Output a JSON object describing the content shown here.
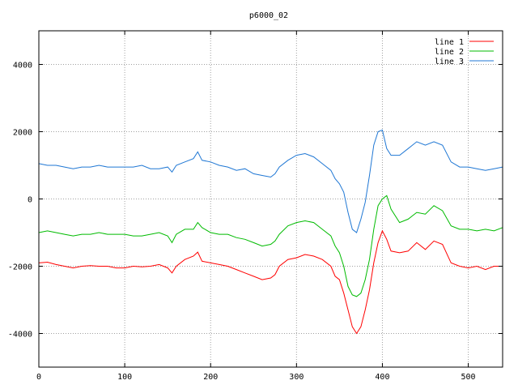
{
  "chart_data": {
    "type": "line",
    "title": "p6000_02",
    "xlim": [
      0,
      540
    ],
    "ylim": [
      -5000,
      5000
    ],
    "xticks": [
      0,
      100,
      200,
      300,
      400,
      500
    ],
    "yticks": [
      -4000,
      -2000,
      0,
      2000,
      4000
    ],
    "xtick_labels": [
      "0",
      "100",
      "200",
      "300",
      "400",
      "500"
    ],
    "ytick_labels": [
      "-4000",
      "-2000",
      "0",
      "2000",
      "4000"
    ],
    "grid": true,
    "legend_position": "top-right",
    "series": [
      {
        "name": "line 1",
        "color": "#ff0000",
        "x": [
          0,
          10,
          20,
          30,
          40,
          50,
          60,
          70,
          80,
          90,
          100,
          110,
          120,
          130,
          140,
          150,
          155,
          160,
          170,
          180,
          185,
          190,
          200,
          210,
          220,
          230,
          240,
          250,
          260,
          270,
          275,
          280,
          290,
          300,
          310,
          320,
          330,
          340,
          345,
          350,
          355,
          360,
          365,
          370,
          375,
          380,
          385,
          390,
          395,
          400,
          405,
          410,
          420,
          430,
          440,
          450,
          460,
          470,
          480,
          490,
          500,
          510,
          520,
          530,
          540
        ],
        "y": [
          -1900,
          -1880,
          -1950,
          -2000,
          -2050,
          -2000,
          -1980,
          -2000,
          -2000,
          -2050,
          -2050,
          -2000,
          -2020,
          -2000,
          -1950,
          -2050,
          -2200,
          -2000,
          -1800,
          -1700,
          -1580,
          -1850,
          -1900,
          -1950,
          -2000,
          -2100,
          -2200,
          -2300,
          -2400,
          -2350,
          -2250,
          -2000,
          -1800,
          -1750,
          -1650,
          -1700,
          -1800,
          -2000,
          -2300,
          -2400,
          -2800,
          -3300,
          -3800,
          -4000,
          -3800,
          -3300,
          -2700,
          -1900,
          -1300,
          -950,
          -1200,
          -1550,
          -1600,
          -1550,
          -1300,
          -1500,
          -1250,
          -1350,
          -1900,
          -2000,
          -2050,
          -2000,
          -2100,
          -2000,
          -2000
        ]
      },
      {
        "name": "line 2",
        "color": "#00bb00",
        "x": [
          0,
          10,
          20,
          30,
          40,
          50,
          60,
          70,
          80,
          90,
          100,
          110,
          120,
          130,
          140,
          150,
          155,
          160,
          170,
          180,
          185,
          190,
          200,
          210,
          220,
          230,
          240,
          250,
          260,
          270,
          275,
          280,
          290,
          300,
          310,
          320,
          330,
          340,
          345,
          350,
          355,
          360,
          365,
          370,
          375,
          380,
          385,
          390,
          395,
          400,
          405,
          410,
          420,
          430,
          440,
          450,
          460,
          470,
          480,
          490,
          500,
          510,
          520,
          530,
          540
        ],
        "y": [
          -1000,
          -950,
          -1000,
          -1050,
          -1100,
          -1050,
          -1050,
          -1000,
          -1050,
          -1050,
          -1050,
          -1100,
          -1100,
          -1050,
          -1000,
          -1100,
          -1300,
          -1050,
          -900,
          -900,
          -700,
          -850,
          -1000,
          -1050,
          -1050,
          -1150,
          -1200,
          -1300,
          -1400,
          -1350,
          -1250,
          -1050,
          -800,
          -700,
          -650,
          -700,
          -900,
          -1100,
          -1400,
          -1600,
          -2000,
          -2600,
          -2850,
          -2900,
          -2800,
          -2400,
          -1800,
          -900,
          -200,
          0,
          100,
          -300,
          -700,
          -600,
          -400,
          -450,
          -200,
          -350,
          -800,
          -900,
          -900,
          -950,
          -900,
          -950,
          -850
        ]
      },
      {
        "name": "line 3",
        "color": "#1f77d4",
        "x": [
          0,
          10,
          20,
          30,
          40,
          50,
          60,
          70,
          80,
          90,
          100,
          110,
          120,
          130,
          140,
          150,
          155,
          160,
          170,
          180,
          185,
          190,
          200,
          210,
          220,
          230,
          240,
          250,
          260,
          270,
          275,
          280,
          290,
          300,
          310,
          320,
          330,
          340,
          345,
          350,
          355,
          360,
          365,
          370,
          375,
          380,
          385,
          390,
          395,
          400,
          405,
          410,
          420,
          430,
          440,
          450,
          460,
          470,
          480,
          490,
          500,
          510,
          520,
          530,
          540
        ],
        "y": [
          1050,
          1000,
          1000,
          950,
          900,
          950,
          950,
          1000,
          950,
          950,
          950,
          950,
          1000,
          900,
          900,
          950,
          800,
          1000,
          1100,
          1200,
          1400,
          1150,
          1100,
          1000,
          950,
          850,
          900,
          750,
          700,
          650,
          750,
          950,
          1150,
          1300,
          1350,
          1250,
          1050,
          850,
          600,
          450,
          200,
          -400,
          -900,
          -1000,
          -600,
          -100,
          700,
          1600,
          2000,
          2050,
          1500,
          1300,
          1300,
          1500,
          1700,
          1600,
          1700,
          1600,
          1100,
          950,
          950,
          900,
          850,
          900,
          950
        ]
      }
    ]
  }
}
